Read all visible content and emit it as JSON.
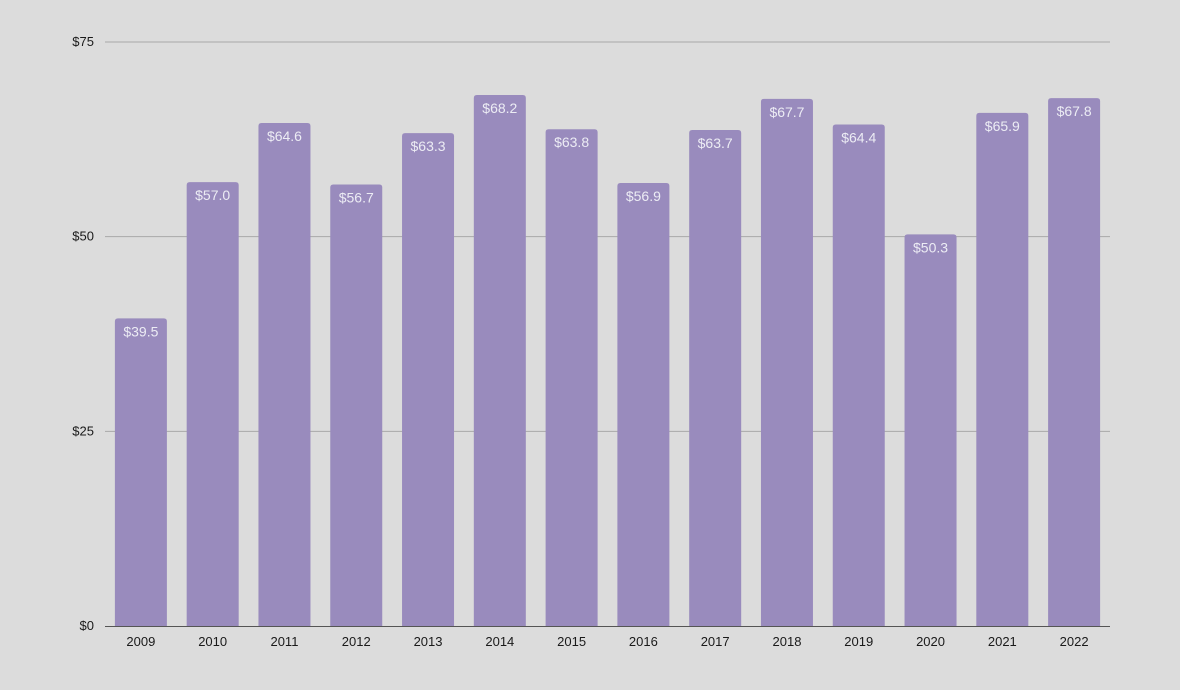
{
  "chart_data": {
    "type": "bar",
    "title": "",
    "xlabel": "",
    "ylabel": "",
    "categories": [
      "2009",
      "2010",
      "2011",
      "2012",
      "2013",
      "2014",
      "2015",
      "2016",
      "2017",
      "2018",
      "2019",
      "2020",
      "2021",
      "2022"
    ],
    "values": [
      39.5,
      57.0,
      64.6,
      56.7,
      63.3,
      68.2,
      63.8,
      56.9,
      63.7,
      67.7,
      64.4,
      50.3,
      65.9,
      67.8
    ],
    "data_labels": [
      "$39.5",
      "$57.0",
      "$64.6",
      "$56.7",
      "$63.3",
      "$68.2",
      "$63.8",
      "$56.9",
      "$63.7",
      "$67.7",
      "$64.4",
      "$50.3",
      "$65.9",
      "$67.8"
    ],
    "ylim": [
      0,
      75
    ],
    "y_ticks": [
      0,
      25,
      50,
      75
    ],
    "y_tick_labels": [
      "$0",
      "$25",
      "$50",
      "$75"
    ],
    "grid": true,
    "legend": "none",
    "colors": {
      "bar": "#998bbd",
      "background": "#dcdcdc",
      "gridline": "#a9a9a9",
      "axis": "#555555",
      "data_label": "#ececf4",
      "tick_label": "#1a1a1a"
    }
  }
}
